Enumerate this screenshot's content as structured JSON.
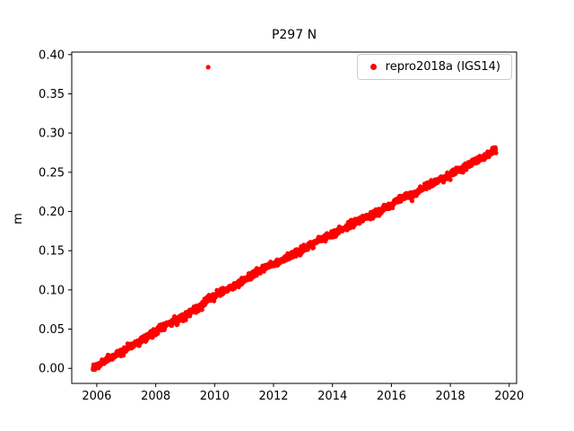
{
  "chart_data": {
    "type": "scatter",
    "title": "P297 N",
    "xlabel": "",
    "ylabel": "m",
    "xlim": [
      2005.15,
      2020.25
    ],
    "ylim": [
      -0.0192,
      0.4032
    ],
    "xticks": [
      2006,
      2008,
      2010,
      2012,
      2014,
      2016,
      2018,
      2020
    ],
    "xtick_labels": [
      "2006",
      "2008",
      "2010",
      "2012",
      "2014",
      "2016",
      "2018",
      "2020"
    ],
    "yticks": [
      0.0,
      0.05,
      0.1,
      0.15,
      0.2,
      0.25,
      0.3,
      0.35,
      0.4
    ],
    "ytick_labels": [
      "0.00",
      "0.05",
      "0.10",
      "0.15",
      "0.20",
      "0.25",
      "0.30",
      "0.35",
      "0.40"
    ],
    "grid": false,
    "legend": {
      "location": "upper right",
      "entries": [
        {
          "label": "repro2018a (IGS14)",
          "color": "#ff0000",
          "marker": "dot"
        }
      ]
    },
    "series": [
      {
        "name": "repro2018a (IGS14)",
        "color": "#ff0000",
        "marker": "dot",
        "marker_radius_px": 2.6,
        "dt_years": 0.01,
        "noise_m": 0.0022,
        "sample_points": [
          [
            2005.87,
            0.0
          ],
          [
            2006.3,
            0.01
          ],
          [
            2006.7,
            0.018
          ],
          [
            2007.0,
            0.025
          ],
          [
            2007.5,
            0.036
          ],
          [
            2008.0,
            0.047
          ],
          [
            2008.3,
            0.055
          ],
          [
            2008.7,
            0.061
          ],
          [
            2009.0,
            0.068
          ],
          [
            2009.5,
            0.077
          ],
          [
            2009.85,
            0.09
          ],
          [
            2010.2,
            0.096
          ],
          [
            2010.6,
            0.104
          ],
          [
            2011.0,
            0.112
          ],
          [
            2011.4,
            0.122
          ],
          [
            2011.8,
            0.13
          ],
          [
            2012.2,
            0.137
          ],
          [
            2012.6,
            0.144
          ],
          [
            2013.0,
            0.152
          ],
          [
            2013.5,
            0.162
          ],
          [
            2014.0,
            0.172
          ],
          [
            2014.5,
            0.181
          ],
          [
            2015.0,
            0.19
          ],
          [
            2015.5,
            0.198
          ],
          [
            2016.0,
            0.208
          ],
          [
            2016.3,
            0.218
          ],
          [
            2016.7,
            0.22
          ],
          [
            2017.0,
            0.228
          ],
          [
            2017.5,
            0.238
          ],
          [
            2018.0,
            0.247
          ],
          [
            2018.5,
            0.257
          ],
          [
            2019.0,
            0.267
          ],
          [
            2019.3,
            0.274
          ],
          [
            2019.55,
            0.281
          ]
        ],
        "outliers": [
          [
            2009.78,
            0.384
          ]
        ]
      }
    ]
  }
}
